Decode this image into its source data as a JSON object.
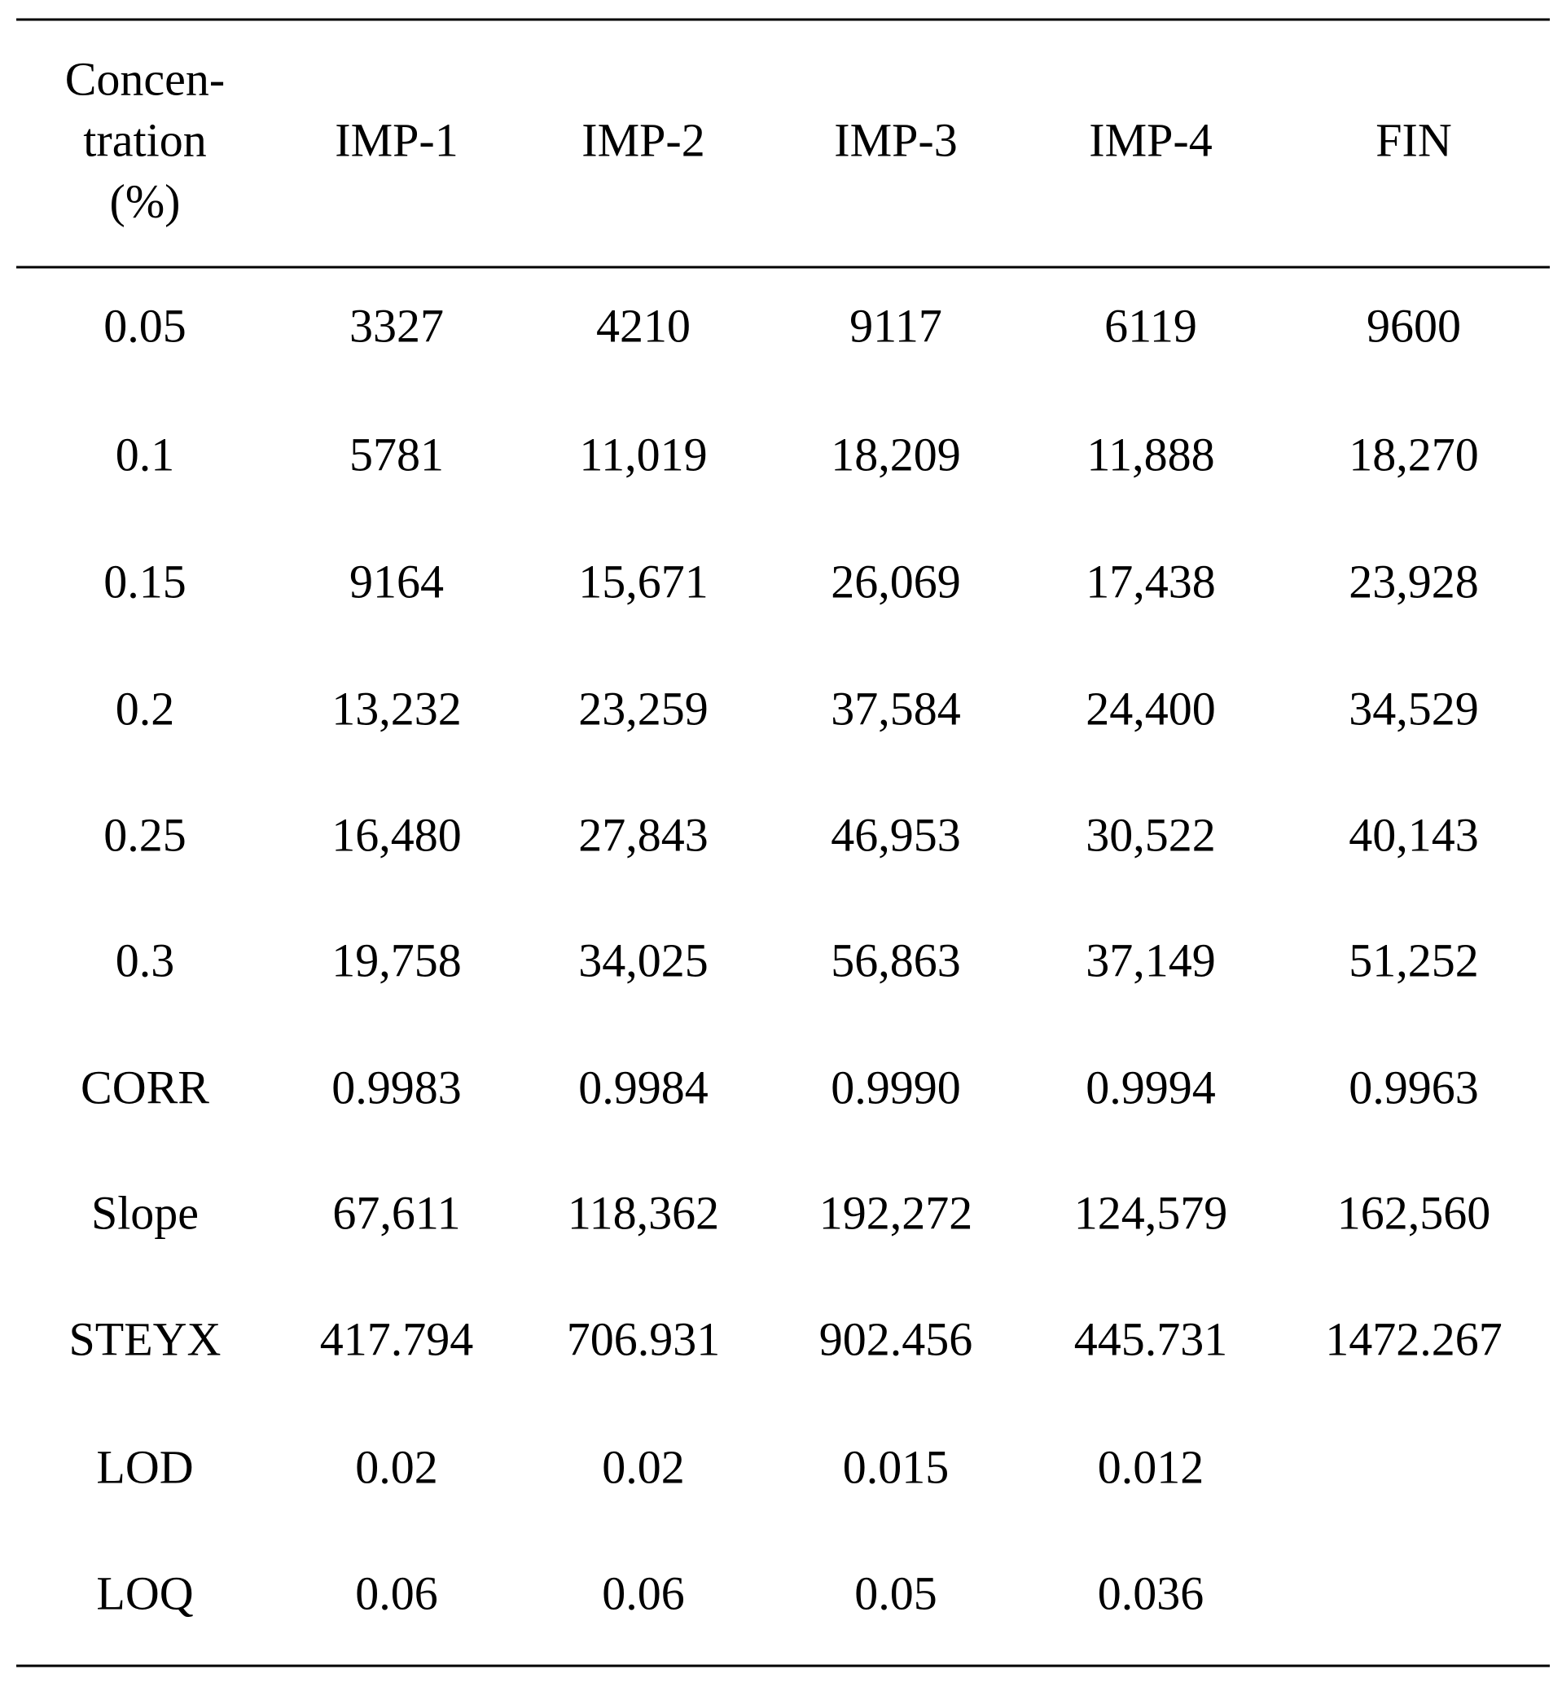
{
  "table": {
    "header": {
      "first": [
        "Concen-",
        "tration",
        "(%)"
      ],
      "columns": [
        "IMP-1",
        "IMP-2",
        "IMP-3",
        "IMP-4",
        "FIN"
      ]
    },
    "rows": [
      [
        "0.05",
        "3327",
        "4210",
        "9117",
        "6119",
        "9600"
      ],
      [
        "0.1",
        "5781",
        "11,019",
        "18,209",
        "11,888",
        "18,270"
      ],
      [
        "0.15",
        "9164",
        "15,671",
        "26,069",
        "17,438",
        "23,928"
      ],
      [
        "0.2",
        "13,232",
        "23,259",
        "37,584",
        "24,400",
        "34,529"
      ],
      [
        "0.25",
        "16,480",
        "27,843",
        "46,953",
        "30,522",
        "40,143"
      ],
      [
        "0.3",
        "19,758",
        "34,025",
        "56,863",
        "37,149",
        "51,252"
      ],
      [
        "CORR",
        "0.9983",
        "0.9984",
        "0.9990",
        "0.9994",
        "0.9963"
      ],
      [
        "Slope",
        "67,611",
        "118,362",
        "192,272",
        "124,579",
        "162,560"
      ],
      [
        "STEYX",
        "417.794",
        "706.931",
        "902.456",
        "445.731",
        "1472.267"
      ],
      [
        "LOD",
        "0.02",
        "0.02",
        "0.015",
        "0.012"
      ],
      [
        "LOQ",
        "0.06",
        "0.06",
        "0.05",
        "0.036"
      ]
    ]
  }
}
